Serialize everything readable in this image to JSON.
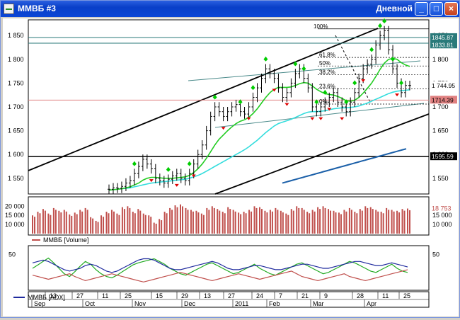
{
  "window": {
    "title": "ММВБ #3",
    "period": "Дневной",
    "buttons": {
      "minimize": "_",
      "maximize": "□",
      "close": "×"
    }
  },
  "colors": {
    "title_bar": "#0a3fc8",
    "price": "#000000",
    "ma_fast": "#22cc22",
    "ma_mid": "#33dddd",
    "ma_slow": "#1a5fa8",
    "volume": "#c0504d",
    "adx": "#1f2a9e",
    "up_marker": "#00cc00",
    "down_marker": "#e00000"
  },
  "chart_data": [
    {
      "type": "line",
      "panel": "price",
      "y_ticks": [
        "1 850",
        "1 800",
        "1 750",
        "1 700",
        "1 650",
        "1 600",
        "1 550"
      ],
      "y_ticks_right": [
        "1 850",
        "1 800",
        "1 750",
        "1 700",
        "1 650",
        "1 600",
        "1 550"
      ],
      "ylim": [
        1520,
        1880
      ],
      "price_labels": {
        "p1": "1845.87",
        "p2": "1833.81",
        "last": "1 744.95",
        "level": "1714.39",
        "support": "1595.59"
      },
      "fib_labels": [
        "100%",
        "61.8%",
        "50%",
        "38.2%",
        "23.6%",
        "0%"
      ],
      "fib_levels": [
        1864,
        1804,
        1786,
        1768,
        1738,
        1706
      ],
      "horizontal_levels": [
        1845.87,
        1833.81,
        1714.39,
        1595.59
      ],
      "close": [
        1527,
        1530,
        1529,
        1533,
        1540,
        1545,
        1560,
        1575,
        1590,
        1580,
        1570,
        1550,
        1545,
        1540,
        1548,
        1555,
        1560,
        1550,
        1545,
        1560,
        1580,
        1600,
        1620,
        1650,
        1680,
        1700,
        1690,
        1680,
        1690,
        1700,
        1705,
        1690,
        1685,
        1700,
        1720,
        1740,
        1760,
        1780,
        1770,
        1760,
        1740,
        1720,
        1730,
        1750,
        1770,
        1780,
        1760,
        1740,
        1700,
        1690,
        1700,
        1710,
        1720,
        1730,
        1710,
        1700,
        1690,
        1710,
        1730,
        1760,
        1780,
        1790,
        1800,
        1830,
        1850,
        1860,
        1820,
        1780,
        1750,
        1730,
        1745,
        1744.95
      ],
      "ma_fast": [
        1525,
        1526,
        1527,
        1528,
        1530,
        1532,
        1536,
        1540,
        1546,
        1550,
        1552,
        1552,
        1551,
        1550,
        1550,
        1550,
        1551,
        1552,
        1553,
        1556,
        1562,
        1570,
        1580,
        1592,
        1606,
        1620,
        1632,
        1641,
        1650,
        1658,
        1665,
        1670,
        1673,
        1678,
        1686,
        1696,
        1708,
        1720,
        1730,
        1737,
        1741,
        1741,
        1741,
        1742,
        1745,
        1749,
        1751,
        1750,
        1744,
        1737,
        1732,
        1728,
        1726,
        1725,
        1722,
        1718,
        1713,
        1712,
        1714,
        1720,
        1729,
        1739,
        1750,
        1764,
        1779,
        1792,
        1800,
        1802,
        1800,
        1793,
        1788,
        1785
      ],
      "ma_mid": [
        1525,
        1526,
        1527,
        1528,
        1529,
        1530,
        1532,
        1534,
        1536,
        1538,
        1540,
        1541,
        1542,
        1543,
        1544,
        1545,
        1546,
        1547,
        1548,
        1550,
        1553,
        1556,
        1560,
        1565,
        1570,
        1575,
        1580,
        1585,
        1590,
        1595,
        1600,
        1605,
        1610,
        1616,
        1623,
        1630,
        1638,
        1646,
        1653,
        1660,
        1665,
        1668,
        1671,
        1674,
        1678,
        1682,
        1686,
        1689,
        1690,
        1690,
        1691,
        1692,
        1694,
        1696,
        1697,
        1698,
        1698,
        1699,
        1700,
        1702,
        1705,
        1708,
        1712,
        1716,
        1720,
        1724,
        1728,
        1731,
        1733,
        1734,
        1735,
        1736
      ],
      "ma_slow_x_from": 35,
      "ma_slow": [
        1540,
        1542,
        1544,
        1546,
        1548,
        1550,
        1552,
        1554,
        1556,
        1558,
        1560,
        1562,
        1564,
        1566,
        1568,
        1570,
        1572,
        1574,
        1576,
        1578,
        1580,
        1582,
        1584,
        1586,
        1588,
        1590,
        1592,
        1594,
        1596,
        1598,
        1600,
        1602,
        1604,
        1606,
        1608,
        1610,
        1612
      ],
      "up_markers": [
        6,
        14,
        19,
        25,
        31,
        34,
        37,
        44,
        46,
        49,
        51,
        56,
        58,
        62,
        64,
        65,
        67,
        69
      ],
      "down_markers": [
        10,
        16,
        20,
        27,
        33,
        39,
        42,
        48,
        50,
        52,
        55,
        60,
        68
      ],
      "x_count": 72
    },
    {
      "type": "bar",
      "panel": "volume",
      "y_ticks": [
        "20 000",
        "15 000",
        "10 000"
      ],
      "y_ticks_right": [
        "15 000",
        "10 000"
      ],
      "last_label": "18 753",
      "legend": "ММВБ [Volume]",
      "ylim": [
        5000,
        24000
      ],
      "values": [
        15000,
        17000,
        18500,
        16000,
        19000,
        17500,
        18000,
        15500,
        16500,
        18000,
        19000,
        14000,
        12000,
        15000,
        17000,
        18000,
        16000,
        19500,
        20000,
        17000,
        18500,
        16000,
        15000,
        11000,
        13000,
        17000,
        19000,
        20500,
        21000,
        19000,
        18000,
        17500,
        16000,
        19000,
        20000,
        18500,
        17000,
        19500,
        18000,
        16500,
        17000,
        18000,
        20000,
        19500,
        17500,
        18000,
        19000,
        17500,
        16000,
        18500,
        20000,
        19000,
        17000,
        18000,
        19500,
        20000,
        18500,
        17500,
        16500,
        18000,
        19000,
        17000,
        18500,
        20000,
        19500,
        18000,
        17000,
        19000,
        18000,
        17500,
        18500,
        18753
      ]
    },
    {
      "type": "line",
      "panel": "indicator",
      "y_ticks": [],
      "y_ticks_right": [
        "50"
      ],
      "legend": "ММВБ [ADX]",
      "ylim": [
        0,
        60
      ],
      "series": [
        {
          "color": "#22aa22",
          "values": [
            30,
            35,
            40,
            45,
            38,
            30,
            22,
            18,
            25,
            33,
            40,
            36,
            28,
            22,
            18,
            16,
            20,
            25,
            30,
            35,
            38,
            40,
            42,
            44,
            40,
            36,
            30,
            26,
            22,
            20,
            24,
            28,
            32,
            36,
            38,
            34,
            30,
            26,
            22,
            24,
            28,
            32,
            36,
            30,
            26,
            22,
            20,
            24,
            28,
            32,
            36,
            38,
            34,
            30,
            26,
            22,
            24,
            28,
            32,
            36,
            40,
            38,
            34,
            30,
            26,
            24,
            28,
            32,
            36,
            30,
            26,
            24
          ]
        },
        {
          "color": "#c0504d",
          "values": [
            20,
            18,
            16,
            14,
            16,
            18,
            20,
            22,
            18,
            15,
            12,
            14,
            16,
            18,
            20,
            22,
            20,
            18,
            16,
            14,
            12,
            10,
            12,
            14,
            16,
            18,
            20,
            22,
            24,
            22,
            20,
            18,
            16,
            14,
            12,
            14,
            16,
            18,
            20,
            22,
            20,
            18,
            16,
            14,
            16,
            18,
            20,
            22,
            24,
            26,
            22,
            18,
            16,
            14,
            12,
            14,
            16,
            18,
            20,
            22,
            18,
            16,
            14,
            12,
            14,
            16,
            18,
            20,
            22,
            24,
            26,
            28
          ]
        },
        {
          "color": "#1f2a9e",
          "values": [
            38,
            40,
            42,
            40,
            36,
            32,
            28,
            26,
            28,
            30,
            34,
            36,
            34,
            30,
            26,
            24,
            26,
            30,
            34,
            38,
            42,
            44,
            44,
            42,
            38,
            34,
            30,
            28,
            28,
            30,
            32,
            34,
            36,
            38,
            40,
            38,
            34,
            30,
            28,
            28,
            30,
            32,
            34,
            34,
            32,
            30,
            28,
            28,
            30,
            32,
            34,
            36,
            36,
            34,
            32,
            30,
            30,
            32,
            34,
            36,
            38,
            40,
            40,
            38,
            36,
            34,
            34,
            36,
            38,
            36,
            34,
            32
          ]
        }
      ]
    }
  ],
  "x_axis": {
    "days": [
      "13",
      "27",
      "11",
      "25",
      "15",
      "29",
      "13",
      "27",
      "24",
      "7",
      "21",
      "9",
      "28",
      "11",
      "25"
    ],
    "months": [
      "Sep",
      "Oct",
      "Nov",
      "Dec",
      "2011",
      "Feb",
      "Mar",
      "Apr"
    ]
  }
}
